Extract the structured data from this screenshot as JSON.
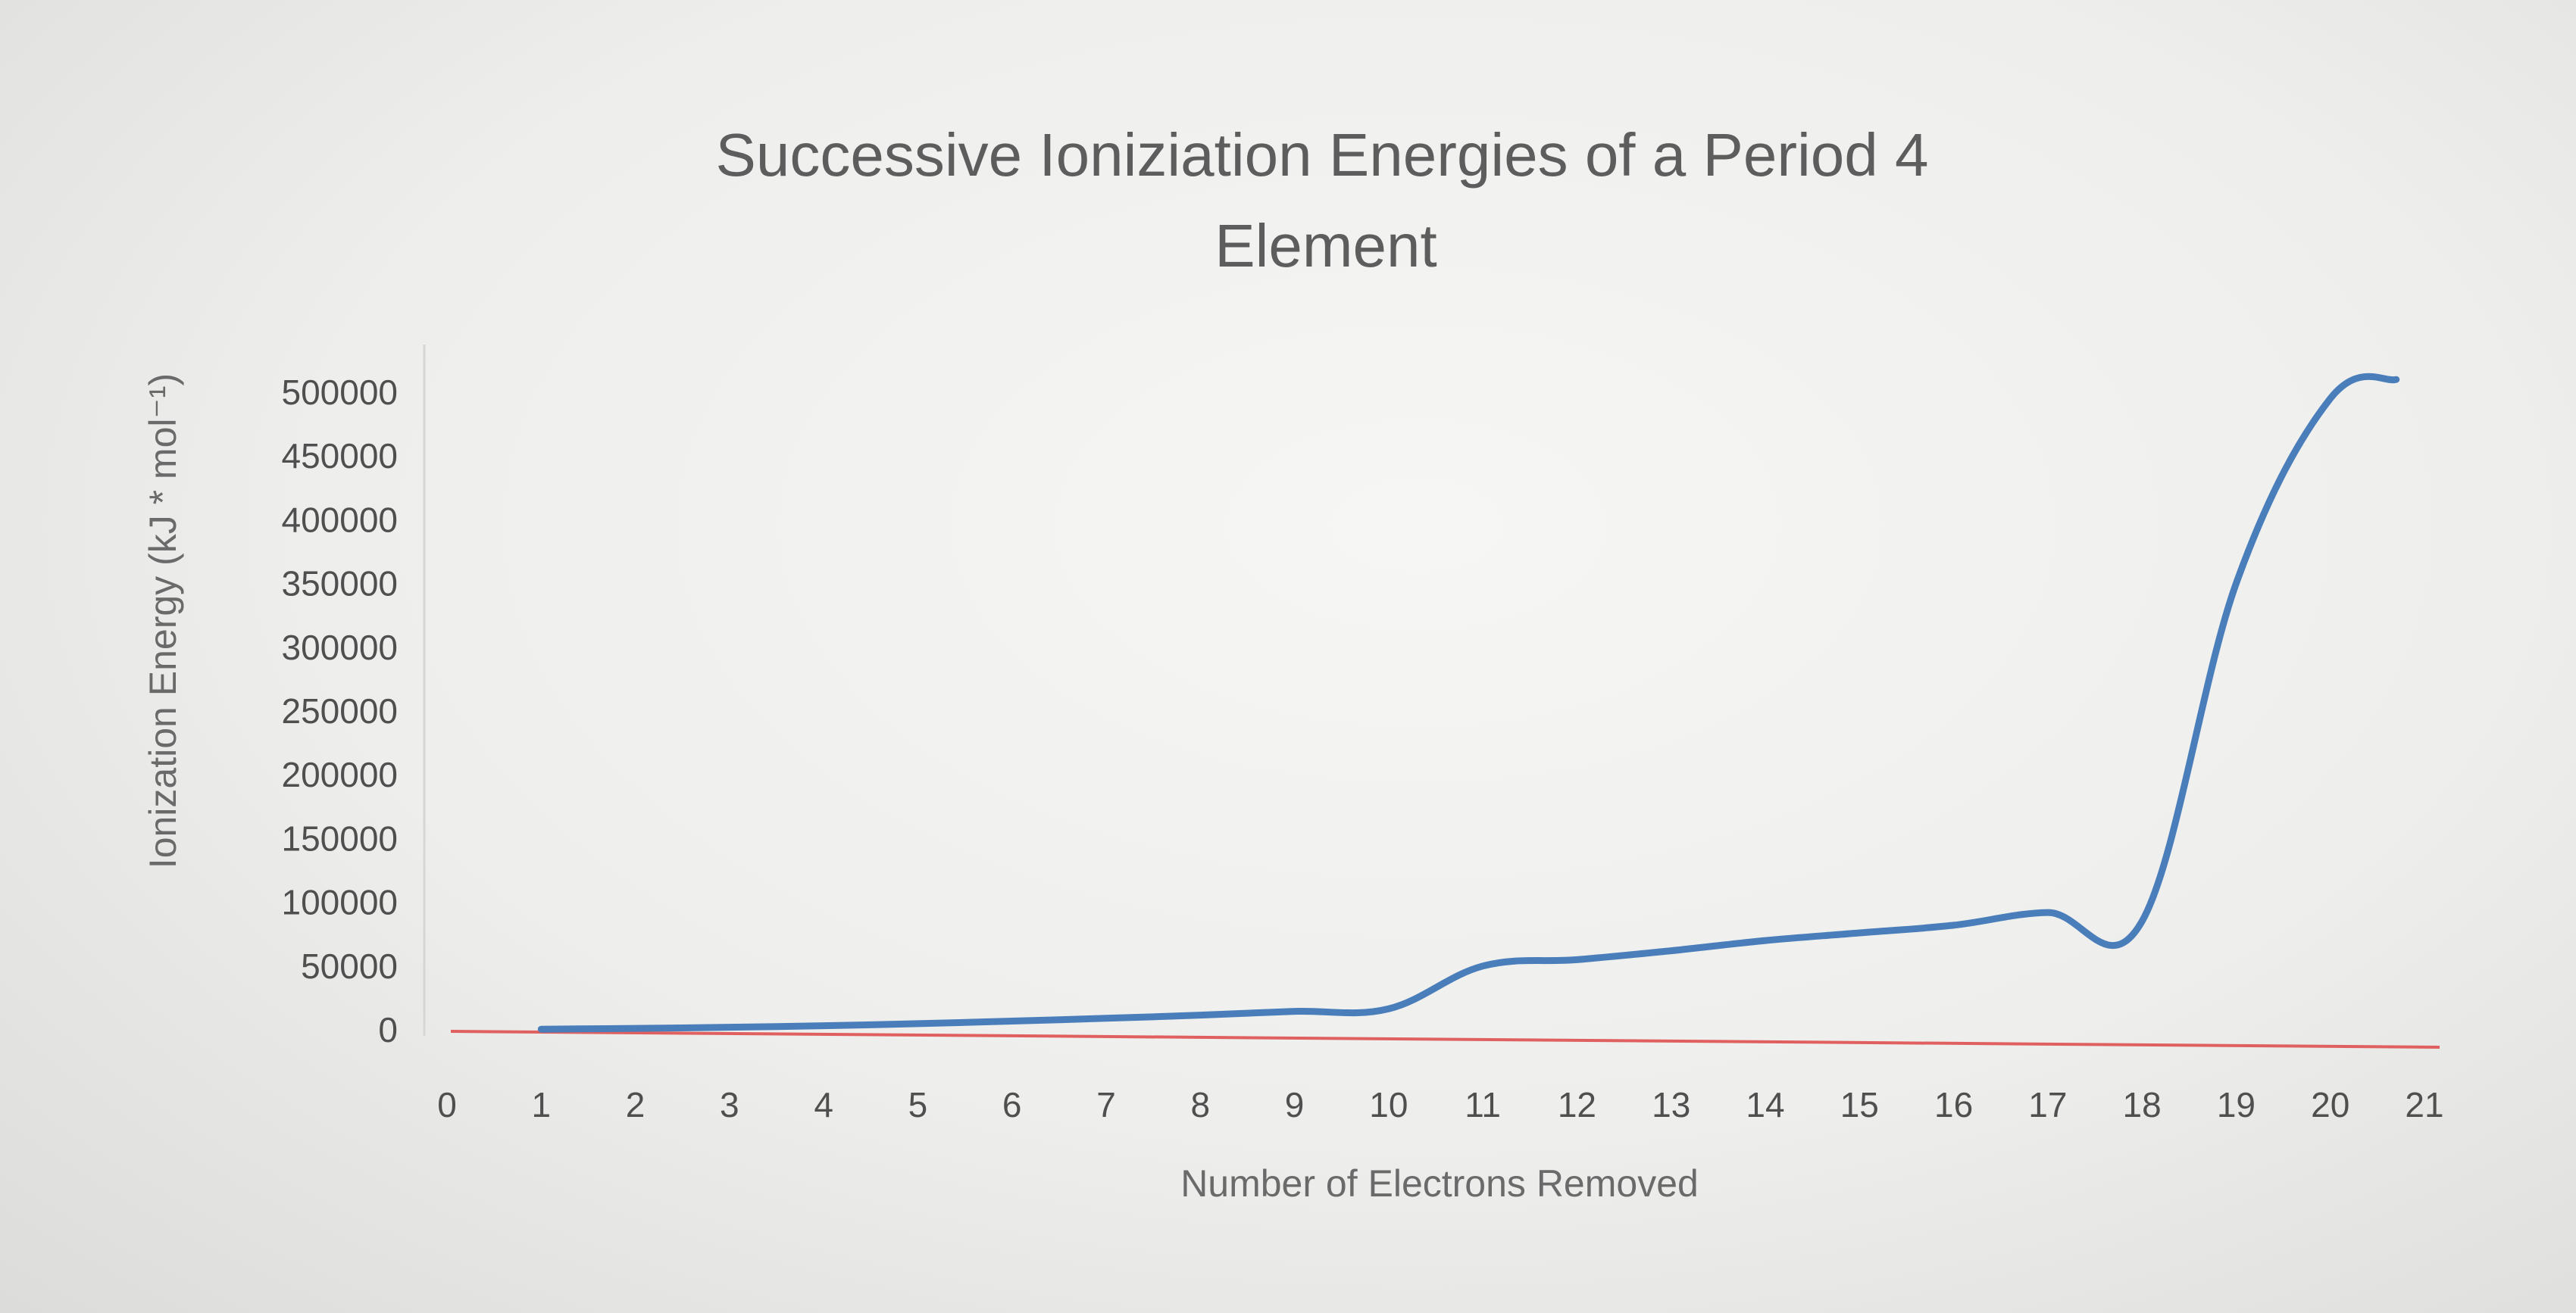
{
  "chart_data": {
    "type": "line",
    "title": "Successive Ioniziation Energies of a Period 4 Element",
    "title_lines": [
      "Successive Ioniziation Energies of a Period 4",
      "Element"
    ],
    "xlabel": "Number  of Electrons Removed",
    "ylabel": "Ionization Energy (kJ * mol⁻¹)",
    "x_ticks": [
      "0",
      "1",
      "2",
      "3",
      "4",
      "5",
      "6",
      "7",
      "8",
      "9",
      "10",
      "11",
      "12",
      "13",
      "14",
      "15",
      "16",
      "17",
      "18",
      "19",
      "20",
      "21"
    ],
    "y_ticks": [
      "0",
      "50000",
      "100000",
      "150000",
      "200000",
      "250000",
      "300000",
      "350000",
      "400000",
      "450000",
      "500000"
    ],
    "xlim": [
      0,
      21
    ],
    "ylim": [
      0,
      500000
    ],
    "grid": false,
    "legend": "none",
    "series": [
      {
        "color": "#4a7ebb",
        "x": [
          1,
          2,
          3,
          4,
          5,
          6,
          7,
          8,
          9,
          10,
          11,
          12,
          13,
          14,
          15,
          16,
          17,
          18,
          19,
          20,
          20.7
        ],
        "values": [
          500,
          1100,
          2000,
          3200,
          4800,
          6800,
          9000,
          11500,
          14500,
          16500,
          50000,
          55000,
          62000,
          70000,
          76000,
          82000,
          92000,
          85000,
          350000,
          495000,
          510000
        ]
      }
    ],
    "axis_line_color": "#e06060"
  }
}
